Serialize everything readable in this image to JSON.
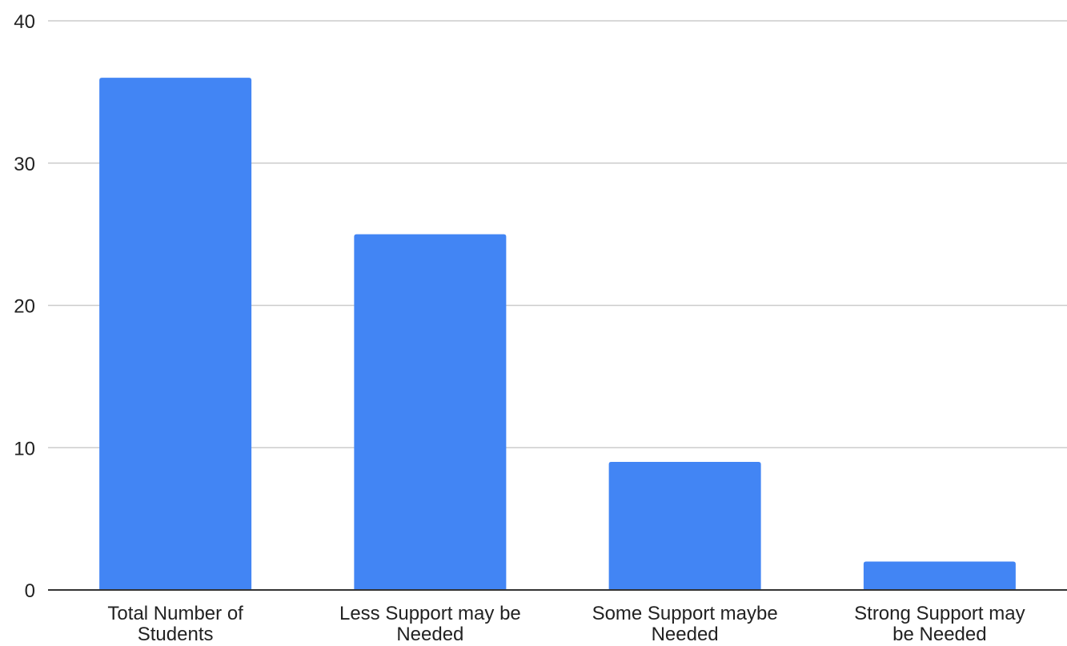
{
  "chart_data": {
    "type": "bar",
    "title": "",
    "xlabel": "",
    "ylabel": "",
    "categories": [
      "Total Number of Students",
      "Less Support may be Needed",
      "Some Support maybe Needed",
      "Strong Support may be Needed"
    ],
    "category_label_lines": [
      [
        "Total Number of",
        "Students"
      ],
      [
        "Less Support may be",
        "Needed"
      ],
      [
        "Some Support maybe",
        "Needed"
      ],
      [
        "Strong Support may",
        "be Needed"
      ]
    ],
    "values": [
      36,
      25,
      9,
      2
    ],
    "ylim": [
      0,
      40
    ],
    "yticks": [
      0,
      10,
      20,
      30,
      40
    ],
    "grid": true,
    "legend": "none",
    "colors": {
      "bar": "#4285f4",
      "grid": "#cccccc",
      "axis": "#333333",
      "text": "#222222"
    }
  }
}
